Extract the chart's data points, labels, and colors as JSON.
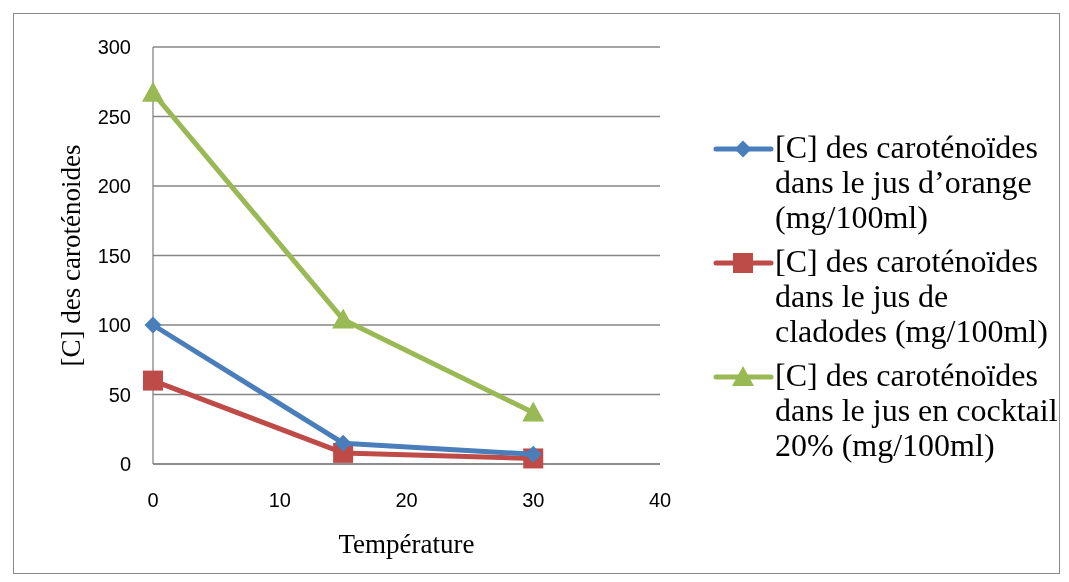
{
  "chart_data": {
    "type": "line",
    "xlabel": "Température",
    "ylabel": "[C] des caroténoides",
    "x": [
      0,
      15,
      30
    ],
    "series": [
      {
        "name": "[C] des caroténoïdes dans le jus d’orange (mg/100ml)",
        "color": "#4a7ebb",
        "marker": "diamond",
        "values": [
          100,
          15,
          7
        ]
      },
      {
        "name": "[C] des caroténoïdes dans le jus de cladodes (mg/100ml)",
        "color": "#be4b48",
        "marker": "square",
        "values": [
          60,
          8,
          4
        ]
      },
      {
        "name": "[C] des caroténoïdes dans le jus en cocktail 20% (mg/100ml)",
        "color": "#98b954",
        "marker": "triangle",
        "values": [
          267,
          104,
          37
        ]
      }
    ],
    "xlim": [
      0,
      40
    ],
    "xticks": [
      0,
      10,
      20,
      30,
      40
    ],
    "ylim": [
      0,
      300
    ],
    "yticks": [
      0,
      50,
      100,
      150,
      200,
      250,
      300
    ],
    "grid": "y",
    "legend": "right"
  }
}
